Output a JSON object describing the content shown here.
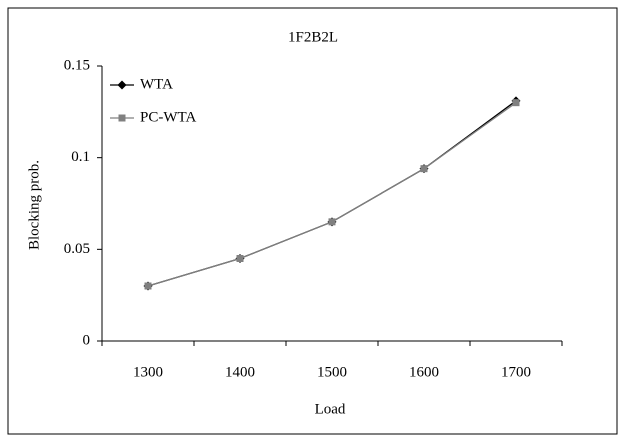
{
  "chart_data": {
    "type": "line",
    "title": "1F2B2L",
    "x_label": "Load",
    "y_label": "Blocking prob.",
    "categories": [
      "1300",
      "1400",
      "1500",
      "1600",
      "1700"
    ],
    "series": [
      {
        "name": "WTA",
        "color": "#000000",
        "marker": "diamond",
        "values": [
          0.03,
          0.045,
          0.065,
          0.094,
          0.131
        ]
      },
      {
        "name": "PC-WTA",
        "color": "#808080",
        "marker": "square",
        "values": [
          0.03,
          0.045,
          0.065,
          0.094,
          0.13
        ]
      }
    ],
    "ylim": [
      0,
      0.15
    ],
    "yticks": [
      0,
      0.05,
      0.1,
      0.15
    ],
    "grid": false,
    "legend": "upper left"
  }
}
